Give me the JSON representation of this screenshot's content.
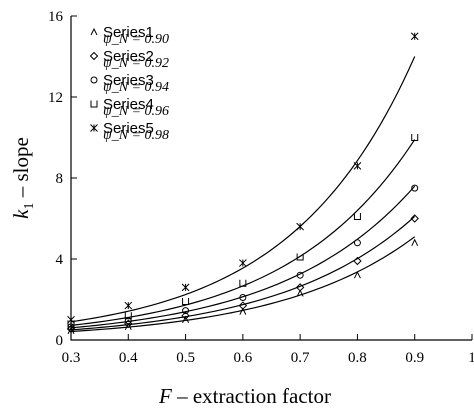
{
  "chart_data": {
    "type": "scatter",
    "title": "",
    "xlabel_italic": "F",
    "xlabel_rest": " – extraction factor",
    "ylabel_italic": "k",
    "ylabel_sub": "1",
    "ylabel_rest": " – slope",
    "xlim": [
      0.3,
      1.0
    ],
    "ylim": [
      0,
      16
    ],
    "x_ticks": [
      "0.3",
      "0.4",
      "0.5",
      "0.6",
      "0.7",
      "0.8",
      "0.9",
      "1"
    ],
    "y_ticks": [
      "0",
      "4",
      "8",
      "12",
      "16"
    ],
    "x": [
      0.3,
      0.4,
      0.5,
      0.6,
      0.7,
      0.8,
      0.9
    ],
    "legend_position": "top-left",
    "series": [
      {
        "name": "Series1",
        "param_label": "ψ_N = 0.90",
        "marker": "triangle",
        "values": [
          0.45,
          0.65,
          1.0,
          1.4,
          2.3,
          3.2,
          4.8
        ]
      },
      {
        "name": "Series2",
        "param_label": "ψ_N = 0.92",
        "marker": "diamond",
        "values": [
          0.55,
          0.8,
          1.2,
          1.7,
          2.6,
          3.9,
          6.0
        ]
      },
      {
        "name": "Series3",
        "param_label": "ψ_N = 0.94",
        "marker": "circle",
        "values": [
          0.65,
          0.95,
          1.45,
          2.1,
          3.2,
          4.8,
          7.5
        ]
      },
      {
        "name": "Series4",
        "param_label": "ψ_N = 0.96",
        "marker": "square-open",
        "values": [
          0.8,
          1.2,
          1.9,
          2.8,
          4.1,
          6.1,
          10.0
        ]
      },
      {
        "name": "Series5",
        "param_label": "ψ_N = 0.98",
        "marker": "asterisk",
        "values": [
          1.0,
          1.7,
          2.6,
          3.8,
          5.6,
          8.6,
          15.0
        ]
      }
    ],
    "fit_curves": [
      {
        "x": [
          0.3,
          0.9
        ],
        "y": [
          0.42,
          5.1
        ]
      },
      {
        "x": [
          0.3,
          0.9
        ],
        "y": [
          0.5,
          6.1
        ]
      },
      {
        "x": [
          0.3,
          0.9
        ],
        "y": [
          0.6,
          7.6
        ]
      },
      {
        "x": [
          0.3,
          0.9
        ],
        "y": [
          0.72,
          9.9
        ]
      },
      {
        "x": [
          0.3,
          0.9
        ],
        "y": [
          0.9,
          14.0
        ]
      }
    ]
  }
}
